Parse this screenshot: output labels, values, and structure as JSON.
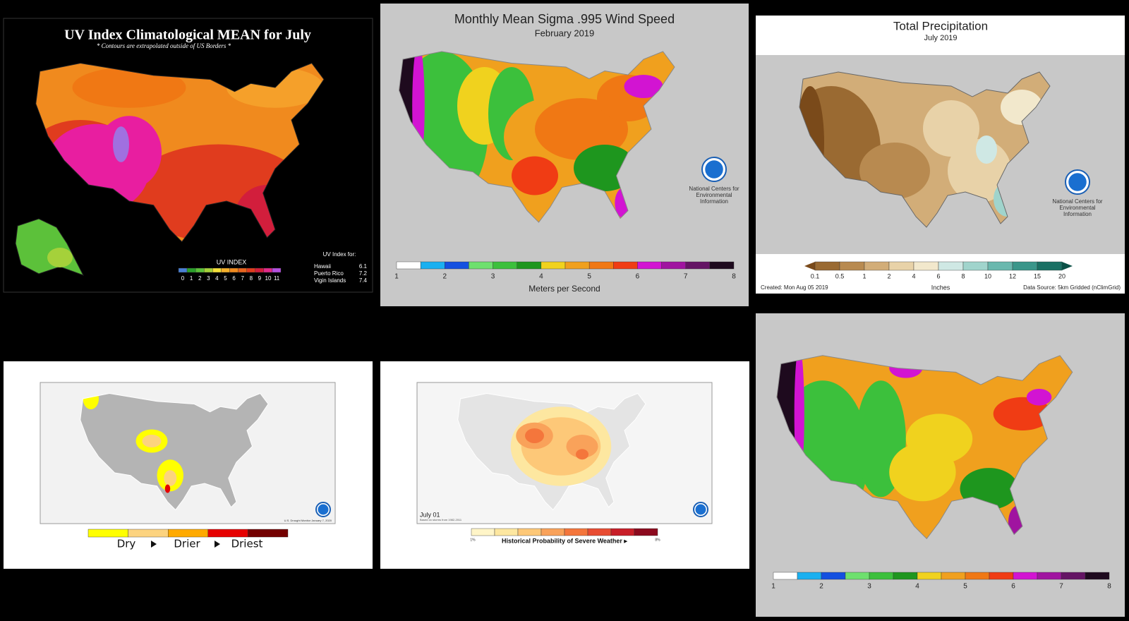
{
  "uv": {
    "title": "UV Index Climatological MEAN for July",
    "subtitle": "* Contours are extrapolated outside of US Borders *",
    "legend": {
      "title": "UV INDEX",
      "ticks": [
        0,
        1,
        2,
        3,
        4,
        5,
        6,
        7,
        8,
        9,
        10,
        11
      ],
      "colors": [
        "#4a7fd4",
        "#2aa02a",
        "#5cc13a",
        "#a5d13a",
        "#f5e13a",
        "#f5b02a",
        "#f08a1e",
        "#e8641e",
        "#e03c1e",
        "#d21e3c",
        "#e02a8a",
        "#b450e0"
      ]
    },
    "territories": {
      "title": "UV Index for:",
      "rows": [
        [
          "Hawaii",
          "6.1"
        ],
        [
          "Puerto Rico",
          "7.2"
        ],
        [
          "Vigin Islands",
          "7.4"
        ]
      ]
    }
  },
  "wind": {
    "title": "Monthly Mean Sigma .995 Wind Speed",
    "subtitle": "February 2019",
    "ticks": [
      1,
      2,
      3,
      4,
      5,
      6,
      7,
      8
    ],
    "colors": [
      "#ffffff",
      "#1ab0f0",
      "#1450e0",
      "#6ee06e",
      "#3cc03c",
      "#1e961e",
      "#f0d21e",
      "#f0a01e",
      "#f07814",
      "#f03c14",
      "#d214d2",
      "#a014a0",
      "#641464",
      "#1e0a1e"
    ],
    "unit": "Meters per Second",
    "credit": [
      "National Centers for",
      "Environmental",
      "Information"
    ]
  },
  "precip": {
    "title": "Total Precipitation",
    "subtitle": "July 2019",
    "ticks": [
      "0.1",
      "0.5",
      "1",
      "2",
      "4",
      "6",
      "8",
      "10",
      "12",
      "15",
      "20"
    ],
    "colors": [
      "#7a4a1a",
      "#9a6a32",
      "#b88a50",
      "#d2ad78",
      "#e8d2a8",
      "#f2e8cc",
      "#cfe8e4",
      "#a0d4cc",
      "#6ab8ae",
      "#3a968a",
      "#1a7064",
      "#0a5046"
    ],
    "unit": "Inches",
    "created": "Created: Mon Aug 05 2019",
    "source": "Data Source: 5km Gridded (nClimGrid)",
    "credit": [
      "National Centers for",
      "Environmental",
      "Information"
    ]
  },
  "drought": {
    "labels": [
      "Dry",
      "Drier",
      "Driest"
    ],
    "colors": [
      "#ffff00",
      "#fcd37f",
      "#ffaa00",
      "#e60000",
      "#730000"
    ],
    "note": "U.S. Drought Monitor January 7, 2020"
  },
  "severe": {
    "date": "July 01",
    "note": "Based on storms from 1982-2011",
    "min": "1%",
    "max": "8%",
    "label": "Historical Probability of Severe Weather ▸",
    "colors": [
      "#fff5c8",
      "#fde7a0",
      "#fdc878",
      "#f9a25a",
      "#f4763c",
      "#e84c32",
      "#c81e28",
      "#8c0a1e"
    ]
  },
  "wind2": {
    "ticks": [
      1,
      2,
      3,
      4,
      5,
      6,
      7,
      8
    ],
    "colors": [
      "#ffffff",
      "#1ab0f0",
      "#1450e0",
      "#6ee06e",
      "#3cc03c",
      "#1e961e",
      "#f0d21e",
      "#f0a01e",
      "#f07814",
      "#f03c14",
      "#d214d2",
      "#a014a0",
      "#641464",
      "#1e0a1e"
    ]
  }
}
